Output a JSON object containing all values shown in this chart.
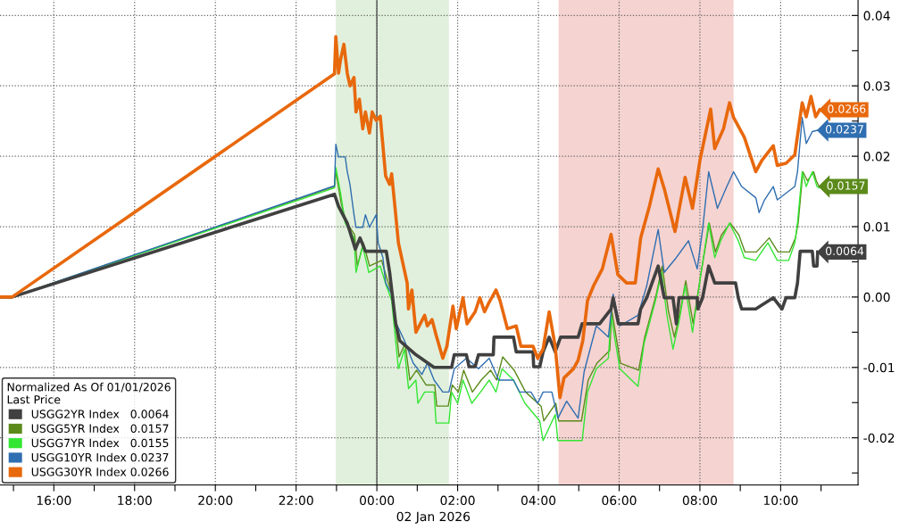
{
  "chart_data": {
    "type": "line",
    "xlabel": "02 Jan 2026",
    "legend_title": "Normalized As Of 01/01/2026\nLast Price",
    "legend": "bottom left",
    "grid": true,
    "xlim": [
      "2026-01-01T14:40",
      "2026-01-02T11:55"
    ],
    "ylim": [
      -0.0267,
      0.0422
    ],
    "xticks": [
      {
        "value": "2026-01-01T15:00",
        "label": null
      },
      {
        "value": "2026-01-01T16:00",
        "label": "16:00"
      },
      {
        "value": "2026-01-01T17:00",
        "label": null
      },
      {
        "value": "2026-01-01T18:00",
        "label": "18:00"
      },
      {
        "value": "2026-01-01T19:00",
        "label": null
      },
      {
        "value": "2026-01-01T20:00",
        "label": "20:00"
      },
      {
        "value": "2026-01-01T21:00",
        "label": null
      },
      {
        "value": "2026-01-01T22:00",
        "label": "22:00"
      },
      {
        "value": "2026-01-01T23:00",
        "label": null
      },
      {
        "value": "2026-01-02T00:00",
        "label": "00:00"
      },
      {
        "value": "2026-01-02T01:00",
        "label": null
      },
      {
        "value": "2026-01-02T02:00",
        "label": "02:00"
      },
      {
        "value": "2026-01-02T03:00",
        "label": null
      },
      {
        "value": "2026-01-02T04:00",
        "label": "04:00"
      },
      {
        "value": "2026-01-02T05:00",
        "label": null
      },
      {
        "value": "2026-01-02T06:00",
        "label": "06:00"
      },
      {
        "value": "2026-01-02T07:00",
        "label": null
      },
      {
        "value": "2026-01-02T08:00",
        "label": "08:00"
      },
      {
        "value": "2026-01-02T09:00",
        "label": null
      },
      {
        "value": "2026-01-02T10:00",
        "label": "10:00"
      },
      {
        "value": "2026-01-02T11:00",
        "label": null
      }
    ],
    "yticks": [
      {
        "value": -0.025,
        "label": null
      },
      {
        "value": -0.02,
        "label": "-0.02"
      },
      {
        "value": -0.015,
        "label": null
      },
      {
        "value": -0.01,
        "label": "-0.01"
      },
      {
        "value": -0.005,
        "label": null
      },
      {
        "value": 0.0,
        "label": "0.00"
      },
      {
        "value": 0.005,
        "label": null
      },
      {
        "value": 0.01,
        "label": "0.01"
      },
      {
        "value": 0.015,
        "label": null
      },
      {
        "value": 0.02,
        "label": "0.02"
      },
      {
        "value": 0.025,
        "label": null
      },
      {
        "value": 0.03,
        "label": "0.03"
      },
      {
        "value": 0.035,
        "label": null
      },
      {
        "value": 0.04,
        "label": "0.04"
      }
    ],
    "bands": [
      {
        "axis": "x",
        "from": "2026-01-01T22:59",
        "to": "2026-01-02T01:47",
        "color": "#e1f0dc"
      },
      {
        "axis": "x",
        "from": "2026-01-02T04:30",
        "to": "2026-01-02T08:50",
        "color": "#f5d3d1"
      }
    ],
    "ref_lines": [
      {
        "axis": "x",
        "value": "2026-01-02T00:00",
        "color": "#555555",
        "line_style": "solid"
      }
    ],
    "series": [
      {
        "name": "USGG2YR Index   0.0064",
        "color": "#404040",
        "x": [
          "2026-01-01T14:40",
          "2026-01-01T14:58",
          "2026-01-01T22:57",
          "2026-01-01T23:03",
          "2026-01-01T23:16",
          "2026-01-01T23:28",
          "2026-01-01T23:35",
          "2026-01-01T23:43",
          "2026-01-02T00:14",
          "2026-01-02T00:19",
          "2026-01-02T00:28",
          "2026-01-02T00:34",
          "2026-01-02T00:58",
          "2026-01-02T01:25",
          "2026-01-02T01:51",
          "2026-01-02T01:55",
          "2026-01-02T02:13",
          "2026-01-02T02:17",
          "2026-01-02T02:26",
          "2026-01-02T02:31",
          "2026-01-02T02:53",
          "2026-01-02T02:54",
          "2026-01-02T03:23",
          "2026-01-02T03:27",
          "2026-01-02T03:52",
          "2026-01-02T03:53",
          "2026-01-02T04:02",
          "2026-01-02T04:07",
          "2026-01-02T04:16",
          "2026-01-02T04:25",
          "2026-01-02T04:33",
          "2026-01-02T04:59",
          "2026-01-02T05:05",
          "2026-01-02T05:31",
          "2026-01-02T05:48",
          "2026-01-02T05:51",
          "2026-01-02T05:59",
          "2026-01-02T06:28",
          "2026-01-02T06:32",
          "2026-01-02T06:41",
          "2026-01-02T06:58",
          "2026-01-02T07:07",
          "2026-01-02T07:20",
          "2026-01-02T07:25",
          "2026-01-02T07:29",
          "2026-01-02T07:56",
          "2026-01-02T07:57",
          "2026-01-02T08:04",
          "2026-01-02T08:13",
          "2026-01-02T08:22",
          "2026-01-02T08:53",
          "2026-01-02T08:57",
          "2026-01-02T09:02",
          "2026-01-02T09:23",
          "2026-01-02T09:49",
          "2026-01-02T10:02",
          "2026-01-02T10:08",
          "2026-01-02T10:21",
          "2026-01-02T10:25",
          "2026-01-02T10:29",
          "2026-01-02T10:47",
          "2026-01-02T10:49",
          "2026-01-02T10:54",
          "2026-01-02T10:55"
        ],
        "values": [
          0,
          0,
          0.0146,
          0.0129,
          0.0105,
          0.0068,
          0.0084,
          0.0065,
          0.0065,
          0.0035,
          -0.0038,
          -0.0062,
          -0.0082,
          -0.01,
          -0.01,
          -0.0082,
          -0.0082,
          -0.0099,
          -0.0099,
          -0.0082,
          -0.0082,
          -0.0057,
          -0.0057,
          -0.0078,
          -0.0078,
          -0.0099,
          -0.0099,
          -0.0078,
          -0.0057,
          -0.0078,
          -0.0057,
          -0.0057,
          -0.0038,
          -0.0038,
          -0.0017,
          -0.0001,
          -0.0038,
          -0.0038,
          -0.0017,
          -0.0001,
          0.0044,
          -0.0001,
          -0.0001,
          -0.0038,
          -0.0001,
          -0.0001,
          -0.0017,
          -0.0001,
          0.0044,
          0.002,
          0.002,
          -0.0001,
          -0.0017,
          -0.0017,
          -0.0001,
          -0.0017,
          -0.0001,
          -0.0001,
          0.002,
          0.0065,
          0.0065,
          0.0044,
          0.0044,
          0.0064
        ],
        "value_labels": [
          null,
          null,
          null,
          null,
          null,
          null,
          null,
          null,
          null,
          null,
          null,
          null,
          null,
          null,
          null,
          null,
          null,
          null,
          null,
          null,
          null,
          null,
          null,
          null,
          null,
          null,
          null,
          null,
          null,
          null,
          null,
          null,
          null,
          null,
          null,
          null,
          null,
          null,
          null,
          null,
          null,
          null,
          null,
          null,
          null,
          null,
          null,
          null,
          null,
          null,
          null,
          null,
          null,
          null,
          null,
          null,
          null,
          null,
          null,
          null,
          null,
          null,
          null,
          "0.0064"
        ]
      },
      {
        "name": "USGG5YR Index   0.0157",
        "color": "#5b8a1a",
        "x": [
          "2026-01-01T14:40",
          "2026-01-01T14:58",
          "2026-01-01T22:57",
          "2026-01-01T22:59",
          "2026-01-01T23:07",
          "2026-01-01T23:14",
          "2026-01-01T23:27",
          "2026-01-01T23:31",
          "2026-01-01T23:40",
          "2026-01-01T23:49",
          "2026-01-02T00:07",
          "2026-01-02T00:16",
          "2026-01-02T00:23",
          "2026-01-02T00:33",
          "2026-01-02T00:42",
          "2026-01-02T00:49",
          "2026-01-02T00:59",
          "2026-01-02T01:13",
          "2026-01-02T01:26",
          "2026-01-02T01:29",
          "2026-01-02T01:46",
          "2026-01-02T01:52",
          "2026-01-02T02:01",
          "2026-01-02T02:09",
          "2026-01-02T02:22",
          "2026-01-02T02:35",
          "2026-01-02T02:49",
          "2026-01-02T02:58",
          "2026-01-02T03:07",
          "2026-01-02T03:24",
          "2026-01-02T03:41",
          "2026-01-02T04:04",
          "2026-01-02T04:08",
          "2026-01-02T04:26",
          "2026-01-02T04:30",
          "2026-01-02T05:04",
          "2026-01-02T05:14",
          "2026-01-02T05:27",
          "2026-01-02T05:46",
          "2026-01-02T05:49",
          "2026-01-02T06:02",
          "2026-01-02T06:29",
          "2026-01-02T06:38",
          "2026-01-02T06:55",
          "2026-01-02T07:04",
          "2026-01-02T07:13",
          "2026-01-02T07:22",
          "2026-01-02T07:31",
          "2026-01-02T07:39",
          "2026-01-02T07:50",
          "2026-01-02T08:01",
          "2026-01-02T08:14",
          "2026-01-02T08:23",
          "2026-01-02T08:32",
          "2026-01-02T08:45",
          "2026-01-02T08:58",
          "2026-01-02T09:07",
          "2026-01-02T09:24",
          "2026-01-02T09:43",
          "2026-01-02T09:56",
          "2026-01-02T10:13",
          "2026-01-02T10:22",
          "2026-01-02T10:26",
          "2026-01-02T10:33",
          "2026-01-02T10:40",
          "2026-01-02T10:49",
          "2026-01-02T10:53",
          "2026-01-02T10:57"
        ],
        "values": [
          0,
          0,
          0.0157,
          0.0178,
          0.0133,
          0.0108,
          0.0088,
          0.0044,
          0.0077,
          0.0044,
          0.0052,
          0.0023,
          0.0003,
          -0.0085,
          -0.0066,
          -0.0118,
          -0.0104,
          -0.0125,
          -0.0125,
          -0.0155,
          -0.0155,
          -0.0125,
          -0.0135,
          -0.0104,
          -0.0135,
          -0.0118,
          -0.0104,
          -0.0118,
          -0.0085,
          -0.0104,
          -0.0135,
          -0.0155,
          -0.0176,
          -0.0151,
          -0.0176,
          -0.0176,
          -0.0118,
          -0.0094,
          -0.0076,
          -0.0019,
          -0.0094,
          -0.0104,
          -0.0057,
          0.0003,
          0.0044,
          -0.0019,
          -0.0057,
          -0.0019,
          0.0023,
          -0.0038,
          0.003,
          0.0105,
          0.0064,
          0.0088,
          0.0105,
          0.0088,
          0.0064,
          0.0064,
          0.0084,
          0.0064,
          0.0064,
          0.0084,
          0.0105,
          0.0178,
          0.0165,
          0.0178,
          0.0165,
          0.0157
        ],
        "value_labels": [
          null,
          null,
          null,
          null,
          null,
          null,
          null,
          null,
          null,
          null,
          null,
          null,
          null,
          null,
          null,
          null,
          null,
          null,
          null,
          null,
          null,
          null,
          null,
          null,
          null,
          null,
          null,
          null,
          null,
          null,
          null,
          null,
          null,
          null,
          null,
          null,
          null,
          null,
          null,
          null,
          null,
          null,
          null,
          null,
          null,
          null,
          null,
          null,
          null,
          null,
          null,
          null,
          null,
          null,
          null,
          null,
          null,
          null,
          null,
          null,
          null,
          null,
          null,
          null,
          null,
          null,
          null,
          "0.0157"
        ]
      },
      {
        "name": "USGG7YR Index   0.0155",
        "color": "#33e633",
        "x": [
          "2026-01-01T14:40",
          "2026-01-01T14:58",
          "2026-01-01T22:57",
          "2026-01-01T22:59",
          "2026-01-01T23:06",
          "2026-01-01T23:13",
          "2026-01-01T23:26",
          "2026-01-01T23:29",
          "2026-01-01T23:39",
          "2026-01-01T23:48",
          "2026-01-02T00:05",
          "2026-01-02T00:14",
          "2026-01-02T00:22",
          "2026-01-02T00:32",
          "2026-01-02T00:41",
          "2026-01-02T00:47",
          "2026-01-02T00:58",
          "2026-01-02T01:01",
          "2026-01-02T01:11",
          "2026-01-02T01:25",
          "2026-01-02T01:28",
          "2026-01-02T01:47",
          "2026-01-02T01:51",
          "2026-01-02T02:00",
          "2026-01-02T02:08",
          "2026-01-02T02:21",
          "2026-01-02T02:34",
          "2026-01-02T02:47",
          "2026-01-02T02:57",
          "2026-01-02T03:06",
          "2026-01-02T03:23",
          "2026-01-02T03:40",
          "2026-01-02T04:02",
          "2026-01-02T04:07",
          "2026-01-02T04:25",
          "2026-01-02T04:29",
          "2026-01-02T05:05",
          "2026-01-02T05:13",
          "2026-01-02T05:26",
          "2026-01-02T05:44",
          "2026-01-02T05:48",
          "2026-01-02T06:01",
          "2026-01-02T06:28",
          "2026-01-02T06:37",
          "2026-01-02T06:54",
          "2026-01-02T07:03",
          "2026-01-02T07:11",
          "2026-01-02T07:20",
          "2026-01-02T07:29",
          "2026-01-02T07:38",
          "2026-01-02T07:49",
          "2026-01-02T08:00",
          "2026-01-02T08:13",
          "2026-01-02T08:22",
          "2026-01-02T08:31",
          "2026-01-02T08:44",
          "2026-01-02T08:57",
          "2026-01-02T09:06",
          "2026-01-02T09:23",
          "2026-01-02T09:41",
          "2026-01-02T09:55",
          "2026-01-02T10:12",
          "2026-01-02T10:21",
          "2026-01-02T10:25",
          "2026-01-02T10:32",
          "2026-01-02T10:38",
          "2026-01-02T10:47",
          "2026-01-02T10:54",
          "2026-01-02T10:57"
        ],
        "values": [
          0,
          0,
          0.0155,
          0.0184,
          0.0148,
          0.0105,
          0.0084,
          0.0035,
          0.0072,
          0.0035,
          0.0044,
          0.0016,
          -0.0005,
          -0.0102,
          -0.0074,
          -0.013,
          -0.0118,
          -0.0151,
          -0.0135,
          -0.0135,
          -0.0179,
          -0.0179,
          -0.0135,
          -0.0151,
          -0.0118,
          -0.0151,
          -0.0135,
          -0.0118,
          -0.0135,
          -0.0102,
          -0.0118,
          -0.0151,
          -0.0176,
          -0.0204,
          -0.0167,
          -0.0204,
          -0.0204,
          -0.0135,
          -0.0102,
          -0.0087,
          -0.0026,
          -0.0102,
          -0.0127,
          -0.0066,
          -0.0005,
          0.0035,
          -0.0026,
          -0.0074,
          -0.0035,
          0.0016,
          -0.005,
          0.0023,
          0.0105,
          0.0056,
          0.008,
          0.0105,
          0.008,
          0.0056,
          0.0052,
          0.0077,
          0.0052,
          0.0052,
          0.0077,
          0.0105,
          0.0178,
          0.0157,
          0.0178,
          0.0157,
          0.0155
        ]
      },
      {
        "name": "USGG10YR Index 0.0237",
        "color": "#2f6eb0",
        "x": [
          "2026-01-01T14:40",
          "2026-01-01T14:58",
          "2026-01-01T22:57",
          "2026-01-01T22:59",
          "2026-01-01T23:03",
          "2026-01-01T23:13",
          "2026-01-01T23:16",
          "2026-01-01T23:20",
          "2026-01-01T23:26",
          "2026-01-01T23:29",
          "2026-01-01T23:39",
          "2026-01-01T23:43",
          "2026-01-01T23:49",
          "2026-01-01T23:59",
          "2026-01-02T00:02",
          "2026-01-02T00:09",
          "2026-01-02T00:13",
          "2026-01-02T00:22",
          "2026-01-02T00:29",
          "2026-01-02T00:41",
          "2026-01-02T00:54",
          "2026-01-02T01:07",
          "2026-01-02T01:15",
          "2026-01-02T01:25",
          "2026-01-02T01:38",
          "2026-01-02T01:47",
          "2026-01-02T01:55",
          "2026-01-02T02:13",
          "2026-01-02T02:31",
          "2026-01-02T02:47",
          "2026-01-02T03:01",
          "2026-01-02T03:23",
          "2026-01-02T03:32",
          "2026-01-02T03:49",
          "2026-01-02T03:59",
          "2026-01-02T04:07",
          "2026-01-02T04:20",
          "2026-01-02T04:29",
          "2026-01-02T04:42",
          "2026-01-02T04:59",
          "2026-01-02T05:08",
          "2026-01-02T05:26",
          "2026-01-02T05:44",
          "2026-01-02T05:51",
          "2026-01-02T06:01",
          "2026-01-02T06:28",
          "2026-01-02T06:41",
          "2026-01-02T06:58",
          "2026-01-02T07:07",
          "2026-01-02T07:25",
          "2026-01-02T07:43",
          "2026-01-02T07:56",
          "2026-01-02T08:04",
          "2026-01-02T08:13",
          "2026-01-02T08:26",
          "2026-01-02T08:40",
          "2026-01-02T08:50",
          "2026-01-02T09:02",
          "2026-01-02T09:23",
          "2026-01-02T09:28",
          "2026-01-02T09:36",
          "2026-01-02T09:49",
          "2026-01-02T09:55",
          "2026-01-02T10:21",
          "2026-01-02T10:25",
          "2026-01-02T10:32",
          "2026-01-02T10:38",
          "2026-01-02T10:47",
          "2026-01-02T10:55"
        ],
        "values": [
          0,
          0,
          0.0158,
          0.0217,
          0.0199,
          0.0199,
          0.0178,
          0.016,
          0.0117,
          0.0099,
          0.0099,
          0.0117,
          0.0099,
          0.0117,
          0.0077,
          0.0056,
          0.002,
          0.0004,
          -0.0038,
          -0.0062,
          -0.0094,
          -0.011,
          -0.0094,
          -0.0118,
          -0.0135,
          -0.0135,
          -0.0102,
          -0.0087,
          -0.0102,
          -0.0087,
          -0.0118,
          -0.0118,
          -0.0135,
          -0.0135,
          -0.0151,
          -0.0135,
          -0.0135,
          -0.0172,
          -0.0148,
          -0.0172,
          -0.0106,
          -0.0041,
          -0.0057,
          0.0004,
          -0.0041,
          -0.0026,
          0.0016,
          0.0096,
          0.0035,
          0.0056,
          0.008,
          0.004,
          0.0096,
          0.0178,
          0.0126,
          0.0157,
          0.0178,
          0.0157,
          0.0141,
          0.012,
          0.0138,
          0.0157,
          0.0138,
          0.0157,
          0.0178,
          0.0255,
          0.0218,
          0.0235,
          0.0237
        ],
        "value_labels": [
          null,
          null,
          null,
          null,
          null,
          null,
          null,
          null,
          null,
          null,
          null,
          null,
          null,
          null,
          null,
          null,
          null,
          null,
          null,
          null,
          null,
          null,
          null,
          null,
          null,
          null,
          null,
          null,
          null,
          null,
          null,
          null,
          null,
          null,
          null,
          null,
          null,
          null,
          null,
          null,
          null,
          null,
          null,
          null,
          null,
          null,
          null,
          null,
          null,
          null,
          null,
          null,
          null,
          null,
          null,
          null,
          null,
          null,
          null,
          null,
          null,
          null,
          null,
          null,
          null,
          null,
          null,
          null,
          "0.0237"
        ]
      },
      {
        "name": "USGG30YR Index 0.0266",
        "color": "#e8680c",
        "x": [
          "2026-01-01T14:40",
          "2026-01-01T14:58",
          "2026-01-01T22:57",
          "2026-01-01T22:59",
          "2026-01-01T23:03",
          "2026-01-01T23:06",
          "2026-01-01T23:11",
          "2026-01-01T23:16",
          "2026-01-01T23:20",
          "2026-01-01T23:26",
          "2026-01-01T23:29",
          "2026-01-01T23:34",
          "2026-01-01T23:39",
          "2026-01-01T23:43",
          "2026-01-01T23:49",
          "2026-01-01T23:53",
          "2026-01-01T23:59",
          "2026-01-02T00:05",
          "2026-01-02T00:09",
          "2026-01-02T00:13",
          "2026-01-02T00:19",
          "2026-01-02T00:22",
          "2026-01-02T00:28",
          "2026-01-02T00:32",
          "2026-01-02T00:45",
          "2026-01-02T00:47",
          "2026-01-02T00:52",
          "2026-01-02T00:58",
          "2026-01-02T01:11",
          "2026-01-02T01:15",
          "2026-01-02T01:22",
          "2026-01-02T01:28",
          "2026-01-02T01:38",
          "2026-01-02T01:44",
          "2026-01-02T01:53",
          "2026-01-02T01:58",
          "2026-01-02T02:08",
          "2026-01-02T02:14",
          "2026-01-02T02:26",
          "2026-01-02T02:33",
          "2026-01-02T02:40",
          "2026-01-02T02:46",
          "2026-01-02T02:57",
          "2026-01-02T03:03",
          "2026-01-02T03:14",
          "2026-01-02T03:27",
          "2026-01-02T03:34",
          "2026-01-02T03:52",
          "2026-01-02T03:59",
          "2026-01-02T04:07",
          "2026-01-02T04:16",
          "2026-01-02T04:25",
          "2026-01-02T04:32",
          "2026-01-02T04:38",
          "2026-01-02T04:52",
          "2026-01-02T04:59",
          "2026-01-02T05:06",
          "2026-01-02T05:13",
          "2026-01-02T05:22",
          "2026-01-02T05:35",
          "2026-01-02T05:48",
          "2026-01-02T05:58",
          "2026-01-02T06:11",
          "2026-01-02T06:24",
          "2026-01-02T06:32",
          "2026-01-02T06:45",
          "2026-01-02T06:58",
          "2026-01-02T07:07",
          "2026-01-02T07:23",
          "2026-01-02T07:38",
          "2026-01-02T07:49",
          "2026-01-02T08:00",
          "2026-01-02T08:16",
          "2026-01-02T08:22",
          "2026-01-02T08:35",
          "2026-01-02T08:44",
          "2026-01-02T08:50",
          "2026-01-02T09:06",
          "2026-01-02T09:23",
          "2026-01-02T09:32",
          "2026-01-02T09:49",
          "2026-01-02T09:55",
          "2026-01-02T10:08",
          "2026-01-02T10:21",
          "2026-01-02T10:32",
          "2026-01-02T10:38",
          "2026-01-02T10:45",
          "2026-01-02T10:52",
          "2026-01-02T10:58"
        ],
        "values": [
          0,
          0,
          0.0317,
          0.037,
          0.0318,
          0.0337,
          0.0359,
          0.0318,
          0.03,
          0.0312,
          0.0263,
          0.0281,
          0.0239,
          0.0263,
          0.0233,
          0.0263,
          0.0251,
          0.0257,
          0.0215,
          0.0172,
          0.016,
          0.0175,
          0.0117,
          0.0077,
          0.002,
          -0.0017,
          0.001,
          -0.005,
          -0.0026,
          -0.0041,
          -0.0032,
          -0.0054,
          -0.0087,
          -0.007,
          -0.0013,
          -0.0045,
          -0.0001,
          -0.0038,
          -0.0021,
          -0.0001,
          -0.0021,
          -0.0009,
          0.001,
          -0.0005,
          -0.0045,
          -0.0041,
          -0.007,
          -0.007,
          -0.0087,
          -0.0074,
          -0.0021,
          -0.007,
          -0.0143,
          -0.0115,
          -0.0102,
          -0.009,
          -0.0062,
          -0.0005,
          0.0016,
          0.004,
          0.0089,
          0.0032,
          0.002,
          0.002,
          0.0084,
          0.0129,
          0.0182,
          0.0154,
          0.0093,
          0.017,
          0.0126,
          0.0194,
          0.0267,
          0.0211,
          0.0239,
          0.0276,
          0.0255,
          0.0227,
          0.0178,
          0.0194,
          0.0215,
          0.0187,
          0.019,
          0.0202,
          0.0276,
          0.0256,
          0.0285,
          0.0256,
          0.0266
        ],
        "value_labels": [
          null,
          null,
          null,
          null,
          null,
          null,
          null,
          null,
          null,
          null,
          null,
          null,
          null,
          null,
          null,
          null,
          null,
          null,
          null,
          null,
          null,
          null,
          null,
          null,
          null,
          null,
          null,
          null,
          null,
          null,
          null,
          null,
          null,
          null,
          null,
          null,
          null,
          null,
          null,
          null,
          null,
          null,
          null,
          null,
          null,
          null,
          null,
          null,
          null,
          null,
          null,
          null,
          null,
          null,
          null,
          null,
          null,
          null,
          null,
          null,
          null,
          null,
          null,
          null,
          null,
          null,
          null,
          null,
          null,
          null,
          null,
          null,
          null,
          null,
          null,
          null,
          null,
          null,
          null,
          null,
          null,
          null,
          null,
          null,
          null,
          null,
          null,
          null,
          "0.0266"
        ]
      }
    ]
  }
}
